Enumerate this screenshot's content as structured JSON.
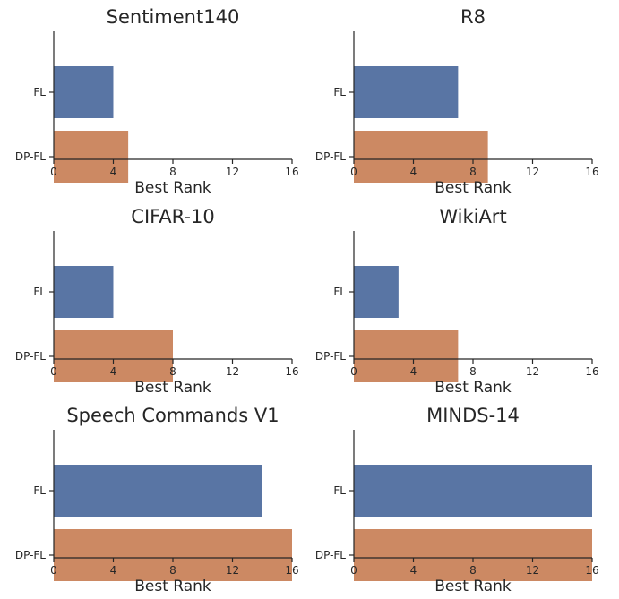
{
  "chart_data": [
    {
      "type": "bar",
      "orientation": "horizontal",
      "title": "Sentiment140",
      "categories": [
        "FL",
        "DP-FL"
      ],
      "values": [
        4,
        5
      ],
      "xlabel": "Best Rank",
      "xlim": [
        0,
        16
      ],
      "xticks": [
        "0",
        "4",
        "8",
        "12",
        "16"
      ]
    },
    {
      "type": "bar",
      "orientation": "horizontal",
      "title": "R8",
      "categories": [
        "FL",
        "DP-FL"
      ],
      "values": [
        7,
        9
      ],
      "xlabel": "Best Rank",
      "xlim": [
        0,
        16
      ],
      "xticks": [
        "0",
        "4",
        "8",
        "12",
        "16"
      ]
    },
    {
      "type": "bar",
      "orientation": "horizontal",
      "title": "CIFAR-10",
      "categories": [
        "FL",
        "DP-FL"
      ],
      "values": [
        4,
        8
      ],
      "xlabel": "Best Rank",
      "xlim": [
        0,
        16
      ],
      "xticks": [
        "0",
        "4",
        "8",
        "12",
        "16"
      ]
    },
    {
      "type": "bar",
      "orientation": "horizontal",
      "title": "WikiArt",
      "categories": [
        "FL",
        "DP-FL"
      ],
      "values": [
        3,
        7
      ],
      "xlabel": "Best Rank",
      "xlim": [
        0,
        16
      ],
      "xticks": [
        "0",
        "4",
        "8",
        "12",
        "16"
      ]
    },
    {
      "type": "bar",
      "orientation": "horizontal",
      "title": "Speech Commands V1",
      "categories": [
        "FL",
        "DP-FL"
      ],
      "values": [
        14,
        16
      ],
      "xlabel": "Best Rank",
      "xlim": [
        0,
        16
      ],
      "xticks": [
        "0",
        "4",
        "8",
        "12",
        "16"
      ]
    },
    {
      "type": "bar",
      "orientation": "horizontal",
      "title": "MINDS-14",
      "categories": [
        "FL",
        "DP-FL"
      ],
      "values": [
        16,
        16
      ],
      "xlabel": "Best Rank",
      "xlim": [
        0,
        16
      ],
      "xticks": [
        "0",
        "4",
        "8",
        "12",
        "16"
      ]
    }
  ],
  "colors": {
    "FL": "#5975a4",
    "DP-FL": "#cc8963"
  }
}
